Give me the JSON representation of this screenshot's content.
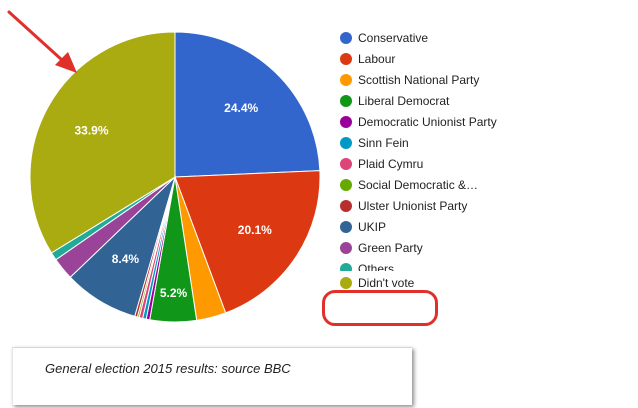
{
  "chart_data": {
    "type": "pie",
    "slices": [
      {
        "name": "Conservative",
        "value": 24.4,
        "label": "24.4%",
        "color": "#3366cc"
      },
      {
        "name": "Labour",
        "value": 20.1,
        "label": "20.1%",
        "color": "#dc3912"
      },
      {
        "name": "Scottish National Party",
        "value": 3.3,
        "label": "",
        "color": "#ff9900"
      },
      {
        "name": "Liberal Democrat",
        "value": 5.2,
        "label": "5.2%",
        "color": "#109618"
      },
      {
        "name": "Democratic Unionist Party",
        "value": 0.4,
        "label": "",
        "color": "#990099"
      },
      {
        "name": "Sinn Fein",
        "value": 0.4,
        "label": "",
        "color": "#0099c6"
      },
      {
        "name": "Plaid Cymru",
        "value": 0.4,
        "label": "",
        "color": "#dd4477"
      },
      {
        "name": "Social Democratic &…",
        "value": 0.2,
        "label": "",
        "color": "#66aa00"
      },
      {
        "name": "Ulster Unionist Party",
        "value": 0.3,
        "label": "",
        "color": "#b82e2e"
      },
      {
        "name": "UKIP",
        "value": 8.4,
        "label": "8.4%",
        "color": "#316395"
      },
      {
        "name": "Green Party",
        "value": 2.5,
        "label": "",
        "color": "#994499"
      },
      {
        "name": "Others",
        "value": 0.9,
        "label": "",
        "color": "#22aa99"
      },
      {
        "name": "Didn't vote",
        "value": 33.9,
        "label": "33.9%",
        "color": "#aaaa11"
      }
    ],
    "legend": {
      "placement": "right",
      "entries": [
        {
          "text": "Conservative",
          "color": "#3366cc"
        },
        {
          "text": "Labour",
          "color": "#dc3912"
        },
        {
          "text": "Scottish National Party",
          "color": "#ff9900"
        },
        {
          "text": "Liberal Democrat",
          "color": "#109618"
        },
        {
          "text": "Democratic Unionist Party",
          "color": "#990099"
        },
        {
          "text": "Sinn Fein",
          "color": "#0099c6"
        },
        {
          "text": "Plaid Cymru",
          "color": "#dd4477"
        },
        {
          "text": "Social Democratic &…",
          "color": "#66aa00"
        },
        {
          "text": "Ulster Unionist Party",
          "color": "#b82e2e"
        },
        {
          "text": "UKIP",
          "color": "#316395"
        },
        {
          "text": "Green Party",
          "color": "#994499"
        },
        {
          "text": "Others",
          "color": "#22aa99"
        },
        {
          "text": "Didn't vote",
          "color": "#aaaa11"
        }
      ]
    }
  },
  "caption": "General election 2015 results: source BBC",
  "annotation_color": "#e0302a"
}
